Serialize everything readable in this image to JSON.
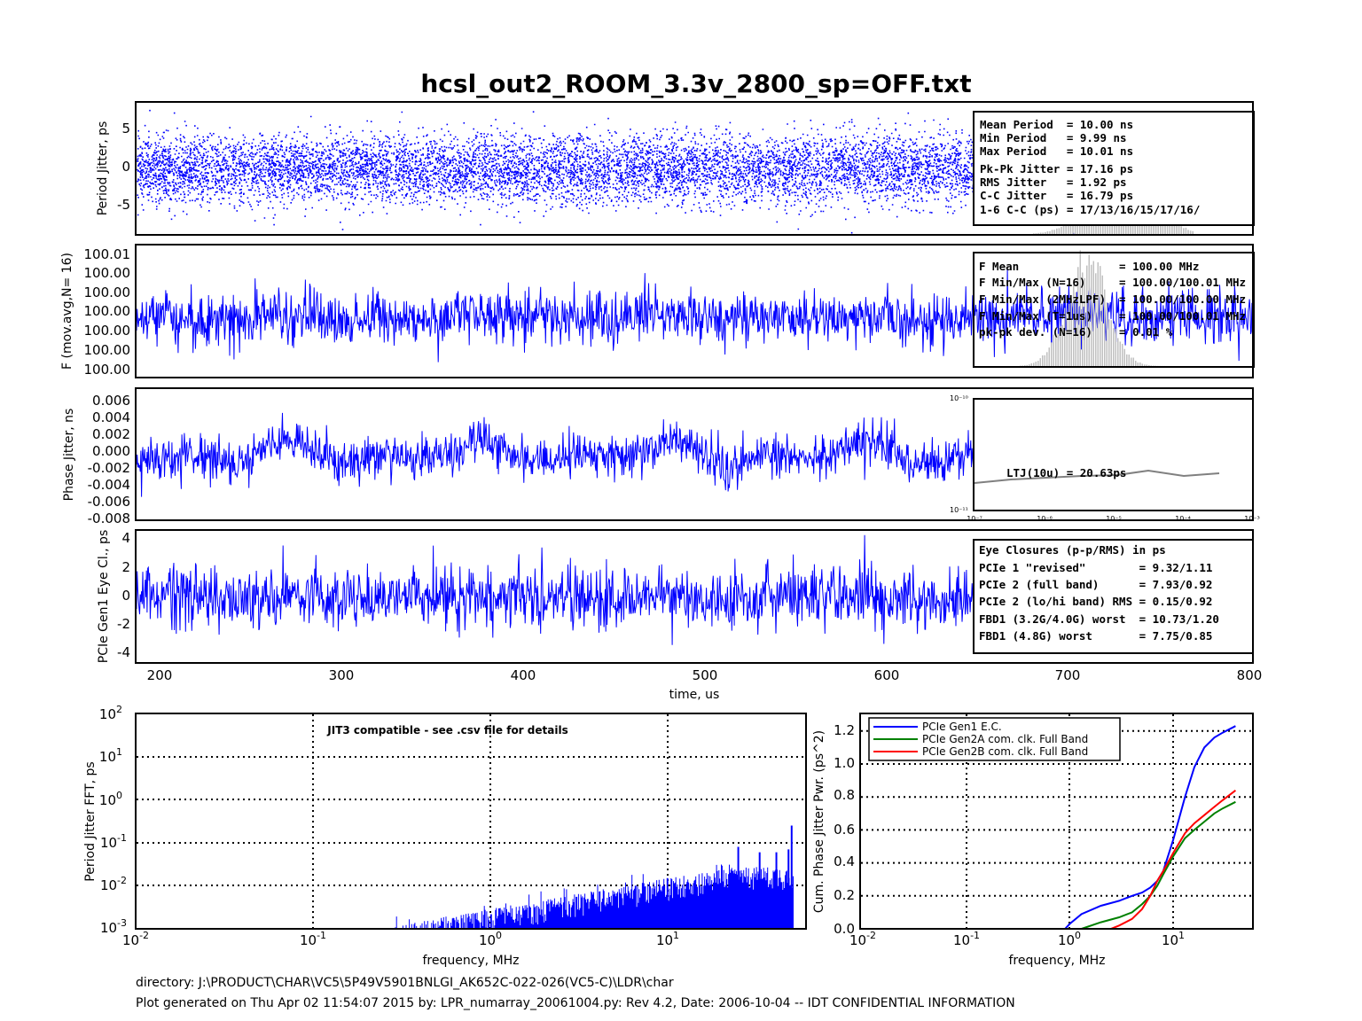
{
  "title": "hcsl_out2_ROOM_3.3v_2800_sp=OFF.txt",
  "colors": {
    "data": "#0000ff",
    "hist": "#c0c0c0",
    "ltj": "#808080",
    "gen1": "#0000ff",
    "gen2a": "#008000",
    "gen2b": "#ff0000"
  },
  "time_axis": {
    "xlabel": "time, us",
    "ticks": [
      "200",
      "300",
      "400",
      "500",
      "600",
      "700",
      "800"
    ]
  },
  "panel1": {
    "ylabel": "Period Jitter, ps",
    "yticks": [
      "5",
      "0",
      "-5"
    ],
    "stats": [
      "Mean Period  = 10.00 ns",
      "Min Period   = 9.99 ns",
      "Max Period   = 10.01 ns",
      "Pk-Pk Jitter = 17.16 ps",
      "RMS Jitter   = 1.92 ps",
      "C-C Jitter   = 16.79 ps",
      "1-6 C-C (ps) = 17/13/16/15/17/16/"
    ]
  },
  "panel2": {
    "ylabel": "F (mov.avg,N= 16)",
    "yticks": [
      "100.01",
      "100.00",
      "100.00",
      "100.00",
      "100.00",
      "100.00",
      "100.00"
    ],
    "stats": [
      "F Mean               = 100.00 MHz",
      "F Min/Max (N=16)     = 100.00/100.01 MHz",
      "F Min/Max (2MHzLPF)  = 100.00/100.00 MHz",
      "F Min/Max (T=1us)    = 100.00/100.01 MHz",
      "pk-pk dev. (N=16)    = 0.01 %"
    ]
  },
  "panel3": {
    "ylabel": "Phase Jitter, ns",
    "yticks": [
      "0.006",
      "0.004",
      "0.002",
      "0.000",
      "-0.002",
      "-0.004",
      "-0.006",
      "-0.008"
    ],
    "inset": {
      "label": "LTJ(10u) = 20.63ps",
      "ytop": "10⁻¹⁰",
      "ybot": "10⁻¹¹",
      "xticks": [
        "10⁻⁷",
        "10⁻⁶",
        "10⁻⁵",
        "10⁻⁴",
        "10⁻³"
      ]
    }
  },
  "panel4": {
    "ylabel": "PCIe Gen1 Eye Cl., ps",
    "yticks": [
      "4",
      "2",
      "0",
      "-2",
      "-4"
    ],
    "stats_title": "Eye Closures (p-p/RMS) in ps",
    "stats": [
      "PCIe 1 \"revised\"        = 9.32/1.11",
      "PCIe 2 (full band)      = 7.93/0.92",
      "PCIe 2 (lo/hi band) RMS = 0.15/0.92",
      "FBD1 (3.2G/4.0G) worst  = 10.73/1.20",
      "FBD1 (4.8G) worst       = 7.75/0.85"
    ]
  },
  "fft_panel": {
    "ylabel": "Period Jitter FFT, ps",
    "xlabel": "frequency, MHz",
    "note": "JIT3 compatible - see .csv file for details",
    "xticks": [
      "10",
      "10",
      "10",
      "10"
    ],
    "xexp": [
      "-2",
      "-1",
      "0",
      "1"
    ],
    "yticks": [
      "10",
      "10",
      "10",
      "10",
      "10",
      "10"
    ],
    "yexp": [
      "2",
      "1",
      "0",
      "-1",
      "-2",
      "-3"
    ]
  },
  "cum_panel": {
    "ylabel": "Cum. Phase Jitter Pwr. (ps^2)",
    "xlabel": "frequency, MHz",
    "xticks": [
      "10",
      "10",
      "10",
      "10"
    ],
    "xexp": [
      "-2",
      "-1",
      "0",
      "1"
    ],
    "yticks": [
      "1.2",
      "1.0",
      "0.8",
      "0.6",
      "0.4",
      "0.2",
      "0.0"
    ],
    "legend": [
      "PCIe Gen1 E.C.",
      "PCIe Gen2A com. clk. Full Band",
      "PCIe Gen2B com. clk. Full Band"
    ]
  },
  "chart_data": [
    {
      "type": "scatter",
      "title": "hcsl_out2_ROOM_3.3v_2800_sp=OFF.txt",
      "xlabel": "time, us",
      "ylabel": "Period Jitter, ps",
      "xlim": [
        190,
        800
      ],
      "ylim": [
        -9,
        9
      ],
      "note": "dense random jitter cloud, approx ±5 ps"
    },
    {
      "type": "line",
      "xlabel": "time, us",
      "ylabel": "F (mov.avg,N= 16)",
      "xlim": [
        190,
        800
      ],
      "note": "frequency moving average near 100.00 MHz"
    },
    {
      "type": "line",
      "xlabel": "time, us",
      "ylabel": "Phase Jitter, ns",
      "xlim": [
        190,
        800
      ],
      "ylim": [
        -0.008,
        0.007
      ]
    },
    {
      "type": "line",
      "xlabel": "time, us",
      "ylabel": "PCIe Gen1 Eye Cl., ps",
      "xlim": [
        190,
        800
      ],
      "ylim": [
        -4.5,
        4.5
      ]
    },
    {
      "type": "bar",
      "xlabel": "frequency, MHz",
      "ylabel": "Period Jitter FFT, ps",
      "xscale": "log",
      "yscale": "log",
      "xlim": [
        0.01,
        70
      ],
      "ylim": [
        0.001,
        100
      ],
      "spikes": [
        {
          "x": 25,
          "y": 0.08
        },
        {
          "x": 33,
          "y": 0.06
        },
        {
          "x": 41,
          "y": 0.06
        },
        {
          "x": 48,
          "y": 0.07
        },
        {
          "x": 50,
          "y": 0.25
        }
      ]
    },
    {
      "type": "line",
      "xlabel": "frequency, MHz",
      "ylabel": "Cum. Phase Jitter Pwr. (ps^2)",
      "xscale": "log",
      "xlim": [
        0.01,
        50
      ],
      "ylim": [
        0,
        1.25
      ],
      "legend": "top-left",
      "series": [
        {
          "name": "PCIe Gen1 E.C.",
          "x": [
            0.9,
            1.0,
            1.3,
            2,
            3,
            4,
            5,
            6,
            7,
            8,
            10,
            13,
            16,
            20,
            25,
            30,
            40
          ],
          "y": [
            0.0,
            0.03,
            0.09,
            0.14,
            0.17,
            0.2,
            0.22,
            0.25,
            0.29,
            0.35,
            0.54,
            0.8,
            0.98,
            1.1,
            1.16,
            1.19,
            1.23
          ]
        },
        {
          "name": "PCIe Gen2A com. clk. Full Band",
          "x": [
            1.3,
            2,
            3,
            4,
            5,
            6,
            7,
            8,
            10,
            13,
            16,
            20,
            25,
            30,
            40
          ],
          "y": [
            0.0,
            0.04,
            0.07,
            0.1,
            0.15,
            0.2,
            0.26,
            0.33,
            0.44,
            0.55,
            0.6,
            0.65,
            0.7,
            0.73,
            0.77
          ]
        },
        {
          "name": "PCIe Gen2B com. clk. Full Band",
          "x": [
            2.5,
            3,
            4,
            5,
            6,
            7,
            8,
            10,
            13,
            16,
            20,
            25,
            30,
            40
          ],
          "y": [
            0.0,
            0.02,
            0.06,
            0.12,
            0.2,
            0.29,
            0.35,
            0.46,
            0.58,
            0.64,
            0.69,
            0.74,
            0.78,
            0.84
          ]
        }
      ]
    }
  ],
  "footer": {
    "line1": "directory: J:\\PRODUCT\\CHAR\\VC5\\5P49V5901BNLGI_AK652C-022-026(VC5-C)\\LDR\\char",
    "line2": "Plot generated on Thu Apr 02 11:54:07 2015 by: LPR_numarray_20061004.py: Rev 4.2, Date: 2006-10-04 -- IDT CONFIDENTIAL INFORMATION"
  }
}
